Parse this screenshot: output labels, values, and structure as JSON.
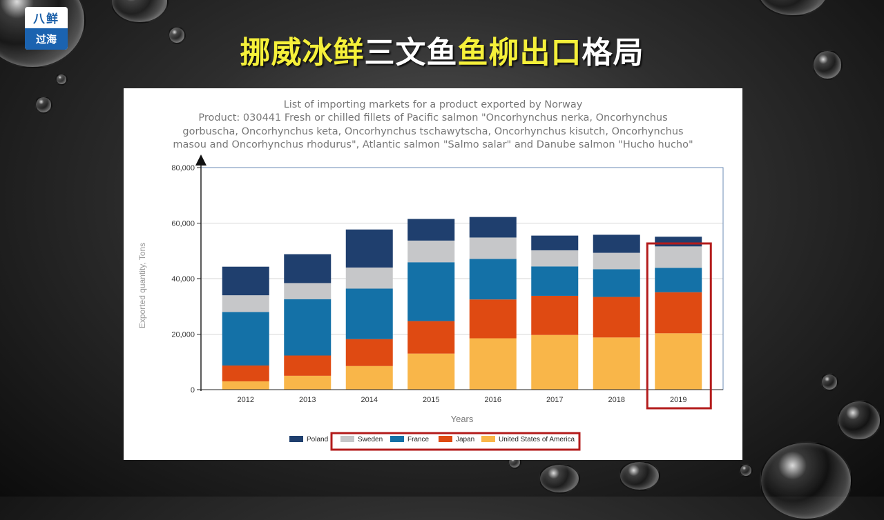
{
  "slide": {
    "title_parts": [
      {
        "text": "挪威冰鲜",
        "color": "yellow"
      },
      {
        "text": "三文鱼",
        "color": "white"
      },
      {
        "text": "鱼柳出口",
        "color": "yellow"
      },
      {
        "text": "格局",
        "color": "white"
      }
    ],
    "logo_top": "八鲜",
    "logo_bottom": "过海"
  },
  "chart_data": {
    "type": "bar",
    "stacked": true,
    "title_lines": [
      "List of importing markets for a product exported by Norway",
      "Product: 030441 Fresh or chilled fillets of Pacific salmon \"Oncorhynchus nerka, Oncorhynchus",
      "gorbuscha, Oncorhynchus keta, Oncorhynchus tschawytscha, Oncorhynchus kisutch, Oncorhynchus",
      "masou and Oncorhynchus rhodurus\", Atlantic salmon \"Salmo salar\" and Danube salmon \"Hucho hucho\""
    ],
    "xlabel": "Years",
    "ylabel": "Exported quantity, Tons",
    "ylim": [
      0,
      80000
    ],
    "yticks": [
      0,
      20000,
      40000,
      60000,
      80000
    ],
    "ytick_labels": [
      "0",
      "20,000",
      "40,000",
      "60,000",
      "80,000"
    ],
    "categories": [
      "2012",
      "2013",
      "2014",
      "2015",
      "2016",
      "2017",
      "2018",
      "2019"
    ],
    "series": [
      {
        "name": "United States of America",
        "color": "#f9b649",
        "values": [
          3000,
          5000,
          8500,
          13000,
          18500,
          19700,
          18800,
          20300
        ]
      },
      {
        "name": "Japan",
        "color": "#df4a12",
        "values": [
          5700,
          7300,
          9700,
          11700,
          14000,
          14100,
          14600,
          14800
        ]
      },
      {
        "name": "France",
        "color": "#1471a7",
        "values": [
          19300,
          20300,
          18200,
          21200,
          14600,
          10600,
          10000,
          8800
        ]
      },
      {
        "name": "Sweden",
        "color": "#c6c7c9",
        "values": [
          6000,
          5800,
          7600,
          7800,
          7700,
          5800,
          5900,
          7700
        ]
      },
      {
        "name": "Poland",
        "color": "#1f3f6e",
        "values": [
          10300,
          10400,
          13700,
          7800,
          7400,
          5300,
          6500,
          3500
        ]
      }
    ],
    "legend_order": [
      "Poland",
      "Sweden",
      "France",
      "Japan",
      "United States of America"
    ],
    "legend_position": "bottom",
    "highlight": {
      "category": "2019",
      "legend_excludes": "Poland",
      "color": "#b31b1b"
    },
    "grid": true
  }
}
